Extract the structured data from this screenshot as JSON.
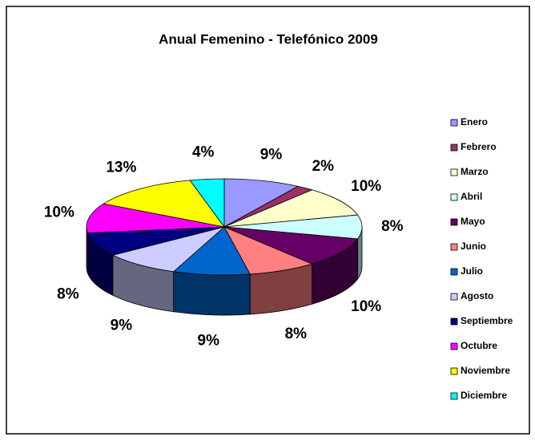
{
  "chart_data": {
    "type": "pie3d",
    "title": "Anual Femenino - Telefónico 2009",
    "categories": [
      "Enero",
      "Febrero",
      "Marzo",
      "Abril",
      "Mayo",
      "Junio",
      "Julio",
      "Agosto",
      "Septiembre",
      "Octubre",
      "Noviembre",
      "Diciembre"
    ],
    "values": [
      9,
      2,
      10,
      8,
      10,
      8,
      9,
      9,
      8,
      10,
      13,
      4
    ],
    "value_labels": [
      "9%",
      "2%",
      "10%",
      "8%",
      "10%",
      "8%",
      "9%",
      "9%",
      "8%",
      "10%",
      "13%",
      "4%"
    ],
    "colors": [
      "#9999ff",
      "#993366",
      "#ffffcc",
      "#ccffff",
      "#660066",
      "#ff8080",
      "#0066cc",
      "#ccccff",
      "#000080",
      "#ff00ff",
      "#ffff00",
      "#00ffff"
    ],
    "legend": "right"
  }
}
